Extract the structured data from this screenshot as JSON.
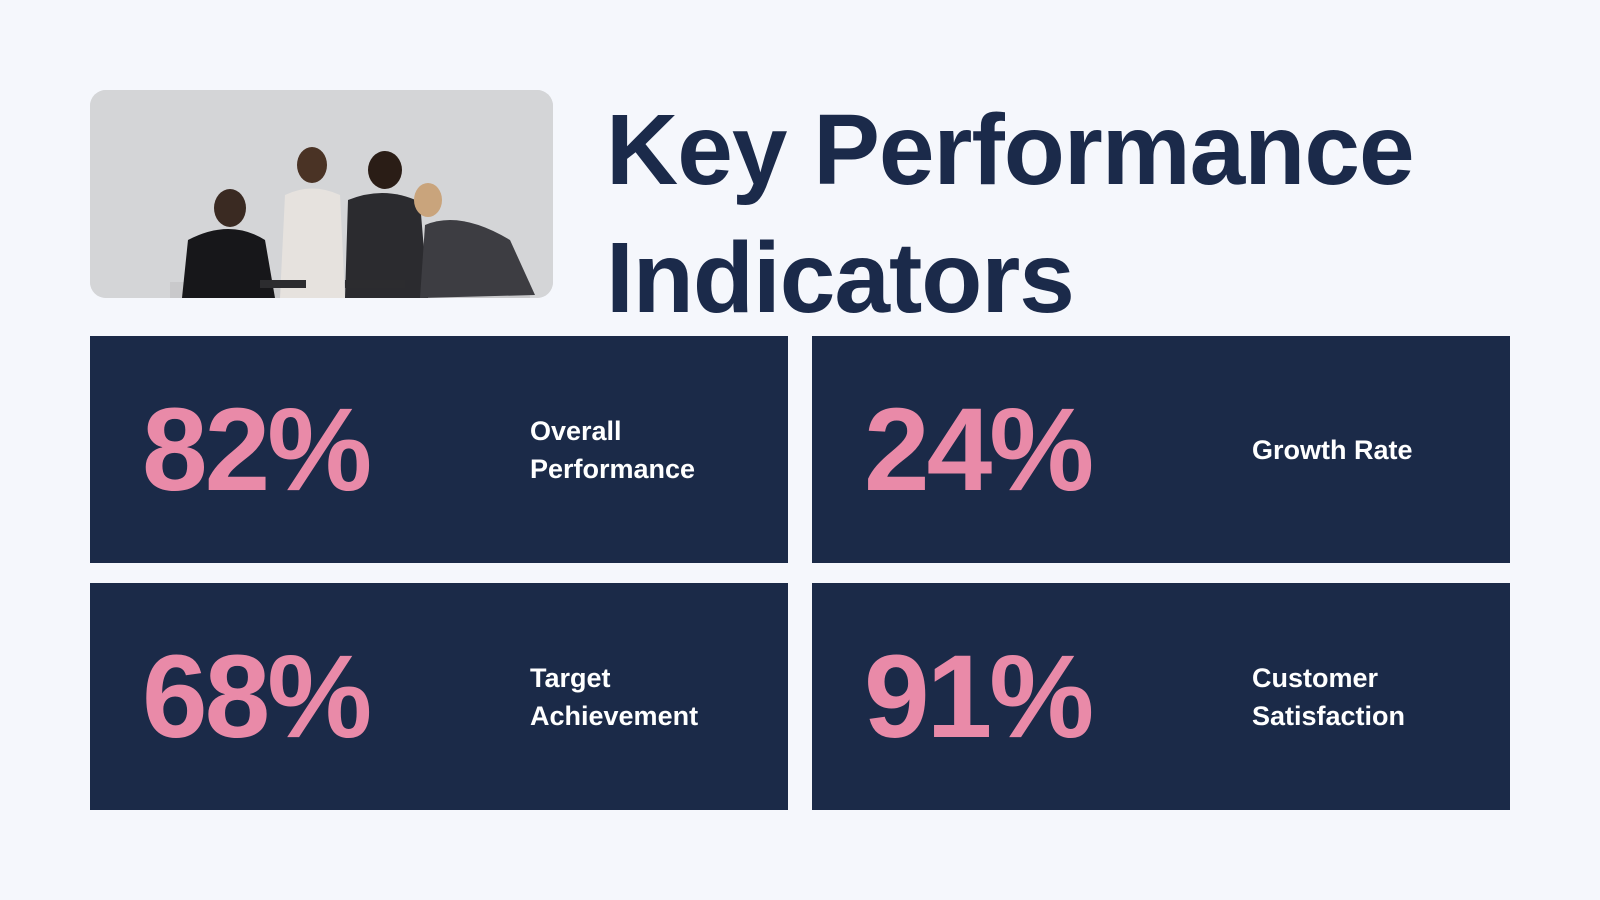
{
  "title": "Key Performance Indicators",
  "cards": [
    {
      "value": "82%",
      "label": "Overall Performance"
    },
    {
      "value": "24%",
      "label": "Growth Rate"
    },
    {
      "value": "68%",
      "label": "Target Achievement"
    },
    {
      "value": "91%",
      "label": "Customer Satisfaction"
    }
  ]
}
